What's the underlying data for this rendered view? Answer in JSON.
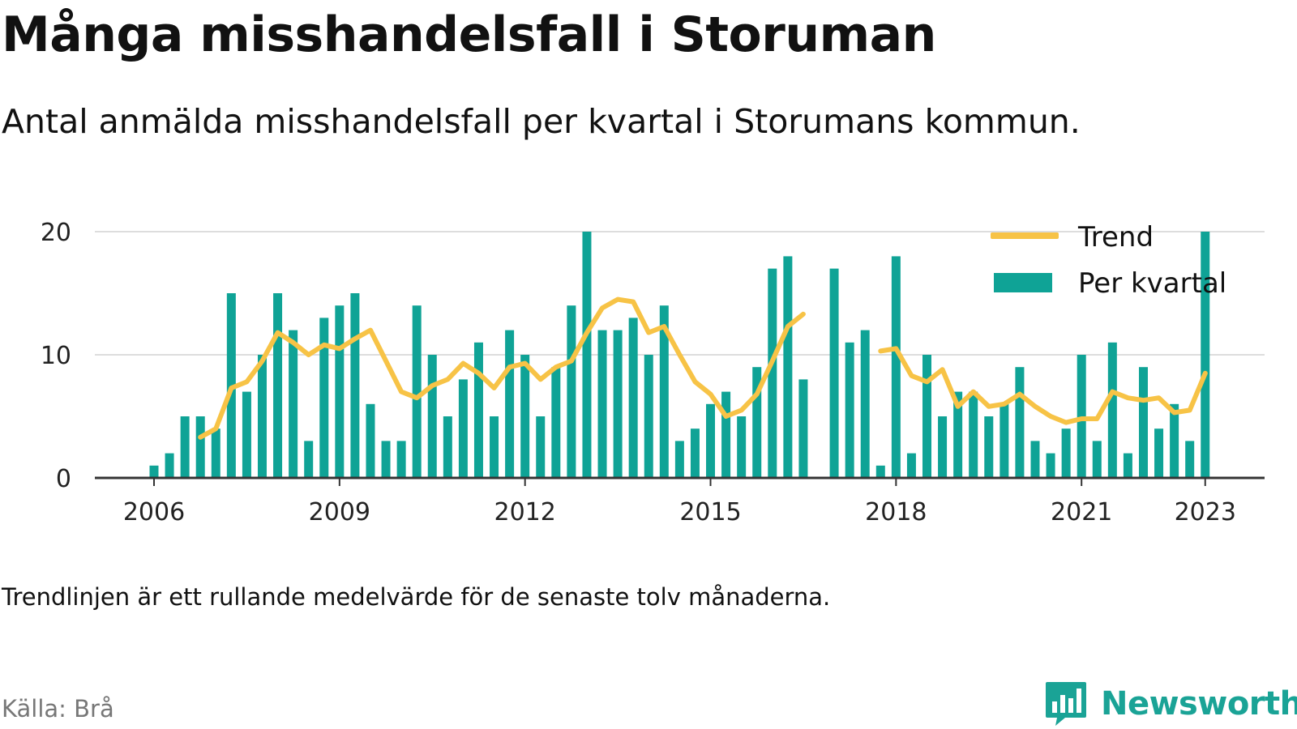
{
  "title": "Många misshandelsfall i Storuman",
  "subtitle": "Antal anmälda misshandelsfall per kvartal i Storumans kommun.",
  "note": "Trendlinjen är ett rullande medelvärde för de senaste tolv månaderna.",
  "source": "Källa: Brå",
  "brand": {
    "name": "Newsworthy",
    "icon": "bar-chart-speech-bubble-icon"
  },
  "colors": {
    "bars": "#0fa396",
    "trend": "#f7c346",
    "grid": "#dddddd",
    "axis": "#333333",
    "brand": "#1aa396"
  },
  "chart_data": {
    "type": "bar",
    "x_ticks": [
      "2006",
      "2009",
      "2012",
      "2015",
      "2018",
      "2021",
      "2023"
    ],
    "y_ticks": [
      "0",
      "10",
      "20"
    ],
    "ylim": [
      0,
      20
    ],
    "grid": true,
    "legend_position": "top-right",
    "legend": [
      {
        "label": "Trend",
        "type": "line"
      },
      {
        "label": "Per kvartal",
        "type": "bar"
      }
    ],
    "categories": [
      "2006-Q1",
      "2006-Q2",
      "2006-Q3",
      "2006-Q4",
      "2007-Q1",
      "2007-Q2",
      "2007-Q3",
      "2007-Q4",
      "2008-Q1",
      "2008-Q2",
      "2008-Q3",
      "2008-Q4",
      "2009-Q1",
      "2009-Q2",
      "2009-Q3",
      "2009-Q4",
      "2010-Q1",
      "2010-Q2",
      "2010-Q3",
      "2010-Q4",
      "2011-Q1",
      "2011-Q2",
      "2011-Q3",
      "2011-Q4",
      "2012-Q1",
      "2012-Q2",
      "2012-Q3",
      "2012-Q4",
      "2013-Q1",
      "2013-Q2",
      "2013-Q3",
      "2013-Q4",
      "2014-Q1",
      "2014-Q2",
      "2014-Q3",
      "2014-Q4",
      "2015-Q1",
      "2015-Q2",
      "2015-Q3",
      "2015-Q4",
      "2016-Q1",
      "2016-Q2",
      "2016-Q3",
      "2016-Q4",
      "2017-Q1",
      "2017-Q2",
      "2017-Q3",
      "2017-Q4",
      "2018-Q1",
      "2018-Q2",
      "2018-Q3",
      "2018-Q4",
      "2019-Q1",
      "2019-Q2",
      "2019-Q3",
      "2019-Q4",
      "2020-Q1",
      "2020-Q2",
      "2020-Q3",
      "2020-Q4",
      "2021-Q1",
      "2021-Q2",
      "2021-Q3",
      "2021-Q4",
      "2022-Q1",
      "2022-Q2",
      "2022-Q3",
      "2022-Q4",
      "2023-Q1"
    ],
    "series": [
      {
        "name": "Per kvartal",
        "type": "bar",
        "values": [
          1,
          2,
          5,
          5,
          4,
          15,
          7,
          10,
          15,
          12,
          3,
          13,
          14,
          15,
          6,
          3,
          3,
          14,
          10,
          5,
          8,
          11,
          5,
          12,
          10,
          5,
          9,
          14,
          20,
          12,
          12,
          13,
          10,
          14,
          3,
          4,
          6,
          7,
          5,
          9,
          17,
          18,
          8,
          null,
          17,
          11,
          12,
          1,
          18,
          2,
          10,
          5,
          7,
          7,
          5,
          6,
          9,
          3,
          2,
          4,
          10,
          3,
          11,
          2,
          9,
          4,
          6,
          3,
          20
        ]
      },
      {
        "name": "Trend",
        "type": "line",
        "values": [
          null,
          null,
          null,
          3.3,
          4,
          7.3,
          7.8,
          9.5,
          11.8,
          11,
          10,
          10.8,
          10.5,
          11.3,
          12,
          9.5,
          7,
          6.5,
          7.5,
          8,
          9.3,
          8.5,
          7.3,
          9,
          9.3,
          8,
          9,
          9.5,
          11.8,
          13.8,
          14.5,
          14.3,
          11.8,
          12.3,
          10,
          7.8,
          6.8,
          5,
          5.5,
          6.8,
          9.5,
          12.3,
          13.3,
          null,
          null,
          null,
          null,
          10.3,
          10.5,
          8.3,
          7.8,
          8.8,
          5.8,
          7,
          5.8,
          6,
          6.8,
          5.8,
          5,
          4.5,
          4.8,
          4.8,
          7,
          6.5,
          6.3,
          6.5,
          5.3,
          5.5,
          8.5
        ]
      }
    ]
  }
}
